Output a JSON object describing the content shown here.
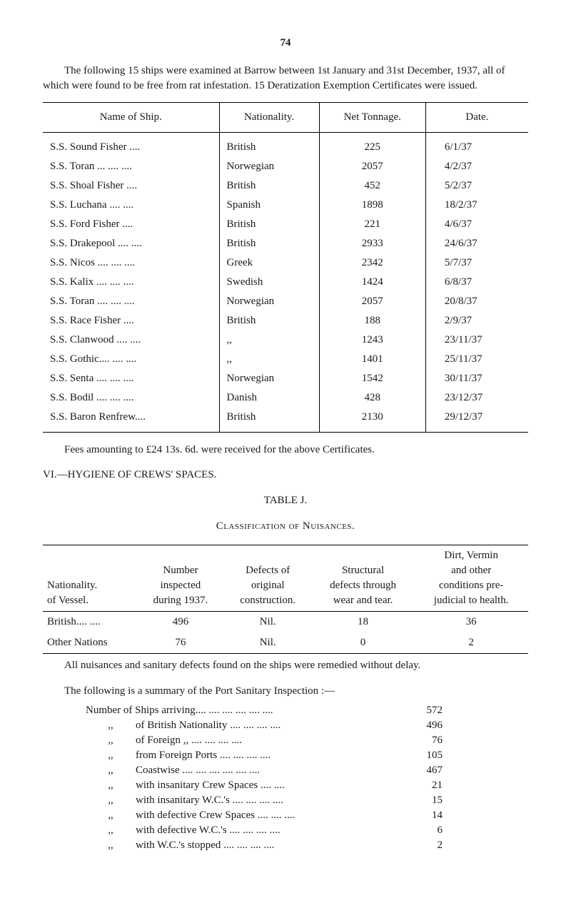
{
  "page_number": "74",
  "intro": "The following 15 ships were examined at Barrow between 1st January and 31st December, 1937, all of which were found to be free from rat infestation. 15 Deratization Exemption Certificates were issued.",
  "ships_table": {
    "columns": [
      "Name of Ship.",
      "Nationality.",
      "Net Tonnage.",
      "Date."
    ],
    "rows": [
      [
        "S.S. Sound Fisher ....",
        "British",
        "225",
        "6/1/37"
      ],
      [
        "S.S. Toran ... .... ....",
        "Norwegian",
        "2057",
        "4/2/37"
      ],
      [
        "S.S. Shoal Fisher ....",
        "British",
        "452",
        "5/2/37"
      ],
      [
        "S.S. Luchana .... ....",
        "Spanish",
        "1898",
        "18/2/37"
      ],
      [
        "S.S. Ford Fisher ....",
        "British",
        "221",
        "4/6/37"
      ],
      [
        "S.S. Drakepool .... ....",
        "British",
        "2933",
        "24/6/37"
      ],
      [
        "S.S. Nicos .... .... ....",
        "Greek",
        "2342",
        "5/7/37"
      ],
      [
        "S.S. Kalix .... .... ....",
        "Swedish",
        "1424",
        "6/8/37"
      ],
      [
        "S.S. Toran .... .... ....",
        "Norwegian",
        "2057",
        "20/8/37"
      ],
      [
        "S.S. Race Fisher ....",
        "British",
        "188",
        "2/9/37"
      ],
      [
        "S.S. Clanwood .... ....",
        ",,",
        "1243",
        "23/11/37"
      ],
      [
        "S.S. Gothic.... .... ....",
        ",,",
        "1401",
        "25/11/37"
      ],
      [
        "S.S. Senta .... .... ....",
        "Norwegian",
        "1542",
        "30/11/37"
      ],
      [
        "S.S. Bodil .... .... ....",
        "Danish",
        "428",
        "23/12/37"
      ],
      [
        "S.S. Baron Renfrew....",
        "British",
        "2130",
        "29/12/37"
      ]
    ]
  },
  "fees_line": "Fees amounting to £24 13s. 6d. were received for the above Certificates.",
  "section_vi": "VI.—HYGIENE OF CREWS' SPACES.",
  "table_j": "TABLE J.",
  "classif": "Classification of Nuisances.",
  "nuisance_table": {
    "headers": {
      "c1": "Nationality. of Vessel.",
      "c2": "Number inspected during 1937.",
      "c3": "Defects of original construction.",
      "c4": "Structural defects through wear and tear.",
      "c5": "Dirt, Vermin and other conditions pre- judicial to health."
    },
    "rows": [
      [
        "British.... ....",
        "496",
        "Nil.",
        "18",
        "36"
      ],
      [
        "Other Nations",
        "76",
        "Nil.",
        "0",
        "2"
      ]
    ]
  },
  "remedy_line": "All nuisances and sanitary defects found on the ships were remedied without delay.",
  "summary_intro": "The following is a summary of the Port Sanitary Inspection :—",
  "summary": [
    {
      "label": "Number of Ships arriving.... .... .... .... .... ....",
      "value": "572"
    },
    {
      "label": "of British Nationality .... .... .... ....",
      "value": "496",
      "ditto": true
    },
    {
      "label": "of Foreign      ,,          .... .... .... ....",
      "value": "76",
      "ditto": true
    },
    {
      "label": "from Foreign Ports     .... .... .... ....",
      "value": "105",
      "ditto": true
    },
    {
      "label": "Coastwise     .... .... .... .... .... ....",
      "value": "467",
      "ditto": true
    },
    {
      "label": "with insanitary Crew Spaces     .... ....",
      "value": "21",
      "ditto": true
    },
    {
      "label": "with insanitary W.C.'s .... .... .... ....",
      "value": "15",
      "ditto": true
    },
    {
      "label": "with defective Crew Spaces .... .... ....",
      "value": "14",
      "ditto": true
    },
    {
      "label": "with defective W.C.'s .... .... .... ....",
      "value": "6",
      "ditto": true
    },
    {
      "label": "with W.C.'s stopped  .... .... .... ....",
      "value": "2",
      "ditto": true
    }
  ]
}
